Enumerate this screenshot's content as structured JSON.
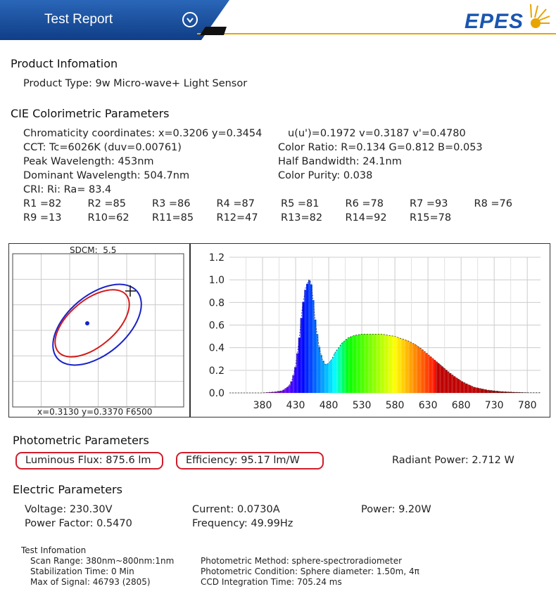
{
  "header": {
    "title": "Test Report",
    "logo_text": "EPES",
    "brand_blue": "#1a4f9c",
    "accent": "#e8a400"
  },
  "product": {
    "section_title": "Product Infomation",
    "type": "Product Type: 9w Micro-wave+ Light Sensor"
  },
  "cie": {
    "section_title": "CIE Colorimetric Parameters",
    "chromaticity": "Chromaticity coordinates: x=0.3206 y=0.3454",
    "uv": "u(u')=0.1972 v=0.3187 v'=0.4780",
    "cct": "CCT: Tc=6026K (duv=0.00761)",
    "color_ratio": "Color Ratio: R=0.134  G=0.812  B=0.053",
    "peak": "Peak Wavelength: 453nm",
    "half_bw": "Half Bandwidth: 24.1nm",
    "dominant": "Dominant Wavelength: 504.7nm",
    "purity": "Color Purity: 0.038",
    "cri": "CRI: Ri: Ra= 83.4",
    "r_values": [
      "R1 =82",
      "R2 =85",
      "R3 =86",
      "R4 =87",
      "R5 =81",
      "R6 =78",
      "R7 =93",
      "R8 =76",
      "R9 =13",
      "R10=62",
      "R11=85",
      "R12=47",
      "R13=82",
      "R14=92",
      "R15=78"
    ]
  },
  "sdcm": {
    "label": "SDCM:",
    "value": "5.5",
    "footer": "x=0.3130 y=0.3370 F6500"
  },
  "chart_data": {
    "type": "area",
    "title": "",
    "xlabel": "",
    "ylabel": "",
    "xlim": [
      330,
      800
    ],
    "ylim": [
      0,
      1.2
    ],
    "x_ticks": [
      "380",
      "430",
      "480",
      "530",
      "580",
      "630",
      "680",
      "730",
      "780"
    ],
    "y_ticks": [
      "0.0",
      "0.2",
      "0.4",
      "0.6",
      "0.8",
      "1.0",
      "1.2"
    ],
    "grid": true,
    "series": [
      {
        "x": [
          380,
          400,
          410,
          420,
          425,
          430,
          435,
          440,
          445,
          450,
          453,
          456,
          460,
          465,
          470,
          475,
          480,
          485,
          490,
          500,
          510,
          520,
          530,
          540,
          550,
          560,
          570,
          580,
          590,
          600,
          610,
          620,
          630,
          640,
          650,
          660,
          670,
          680,
          690,
          700,
          720,
          740,
          760,
          780
        ],
        "values": [
          0.0,
          0.01,
          0.02,
          0.06,
          0.12,
          0.24,
          0.46,
          0.75,
          0.93,
          1.0,
          0.98,
          0.85,
          0.62,
          0.42,
          0.3,
          0.25,
          0.26,
          0.3,
          0.36,
          0.44,
          0.49,
          0.51,
          0.52,
          0.52,
          0.52,
          0.52,
          0.51,
          0.5,
          0.48,
          0.46,
          0.43,
          0.39,
          0.34,
          0.29,
          0.24,
          0.19,
          0.145,
          0.105,
          0.075,
          0.05,
          0.025,
          0.012,
          0.006,
          0.002
        ]
      }
    ]
  },
  "photometric": {
    "section_title": "Photometric Parameters",
    "flux": "Luminous Flux: 875.6 lm",
    "efficiency": "Efficiency: 95.17 lm/W",
    "radiant": "Radiant Power: 2.712 W"
  },
  "electric": {
    "section_title": "Electric Parameters",
    "voltage": "Voltage: 230.30V",
    "current": "Current: 0.0730A",
    "power": "Power: 9.20W",
    "pf": "Power Factor: 0.5470",
    "freq": "Frequency: 49.99Hz"
  },
  "test": {
    "title": "Test Infomation",
    "scan": "Scan Range: 380nm~800nm:1nm",
    "stab": "Stabilization Time: 0 Min",
    "max": "Max of Signal: 46793 (2805)",
    "method": "Photometric Method: sphere-spectroradiometer",
    "condition": "Photometric Condition: Sphere diameter: 1.50m, 4π",
    "ccd": "CCD Integration Time: 705.24 ms"
  }
}
